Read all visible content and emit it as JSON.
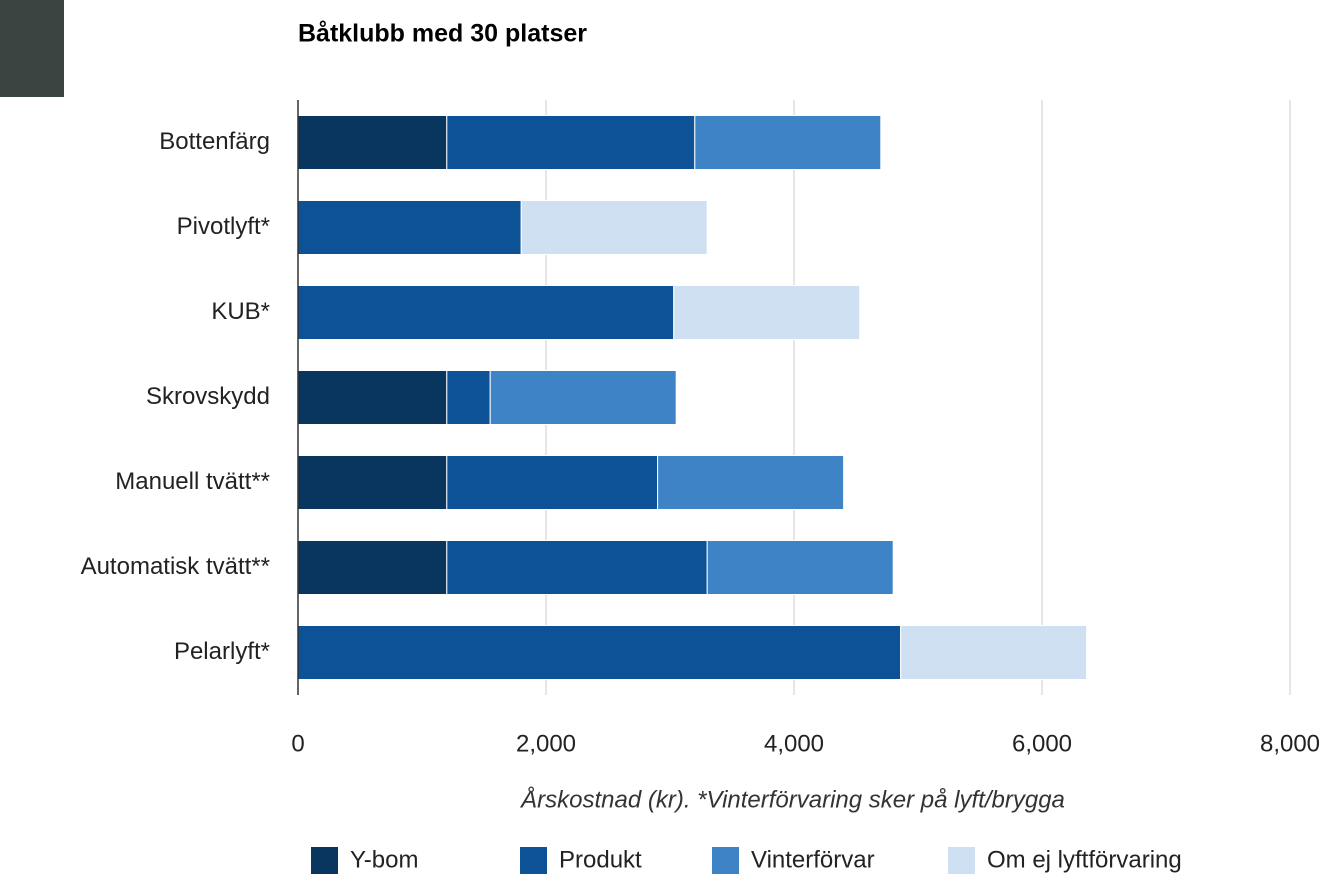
{
  "chart_data": {
    "type": "stacked-bar-horizontal",
    "title": "Båtklubb med 30 platser",
    "x_label": "Årskostnad (kr). *Vinterförvaring sker på lyft/brygga",
    "categories": [
      "Bottenfärg",
      "Pivotlyft*",
      "KUB*",
      "Skrovskydd",
      "Manuell tvätt**",
      "Automatisk tvätt**",
      "Pelarlyft*"
    ],
    "series": [
      {
        "name": "Y-bom",
        "color": "#08365f",
        "values": [
          1200,
          null,
          null,
          1200,
          1200,
          1200,
          null
        ]
      },
      {
        "name": "Produkt",
        "color": "#0d5196",
        "values": [
          2000,
          1800,
          3030,
          350,
          1700,
          2100,
          4860
        ]
      },
      {
        "name": "Vinterförvar",
        "color": "#3d83c6",
        "values": [
          1500,
          null,
          null,
          1500,
          1500,
          1500,
          null
        ]
      },
      {
        "name": "Om ej lyftförvaring",
        "color": "#cfe0f2",
        "values": [
          null,
          1500,
          1500,
          null,
          null,
          null,
          1500
        ]
      }
    ],
    "xlim": [
      0,
      8000
    ],
    "xticks": [
      {
        "value": 0,
        "label": "0"
      },
      {
        "value": 2000,
        "label": "2,000"
      },
      {
        "value": 4000,
        "label": "4,000"
      },
      {
        "value": 6000,
        "label": "6,000"
      },
      {
        "value": 8000,
        "label": "8,000"
      }
    ],
    "grid": true,
    "legend": "bottom"
  }
}
